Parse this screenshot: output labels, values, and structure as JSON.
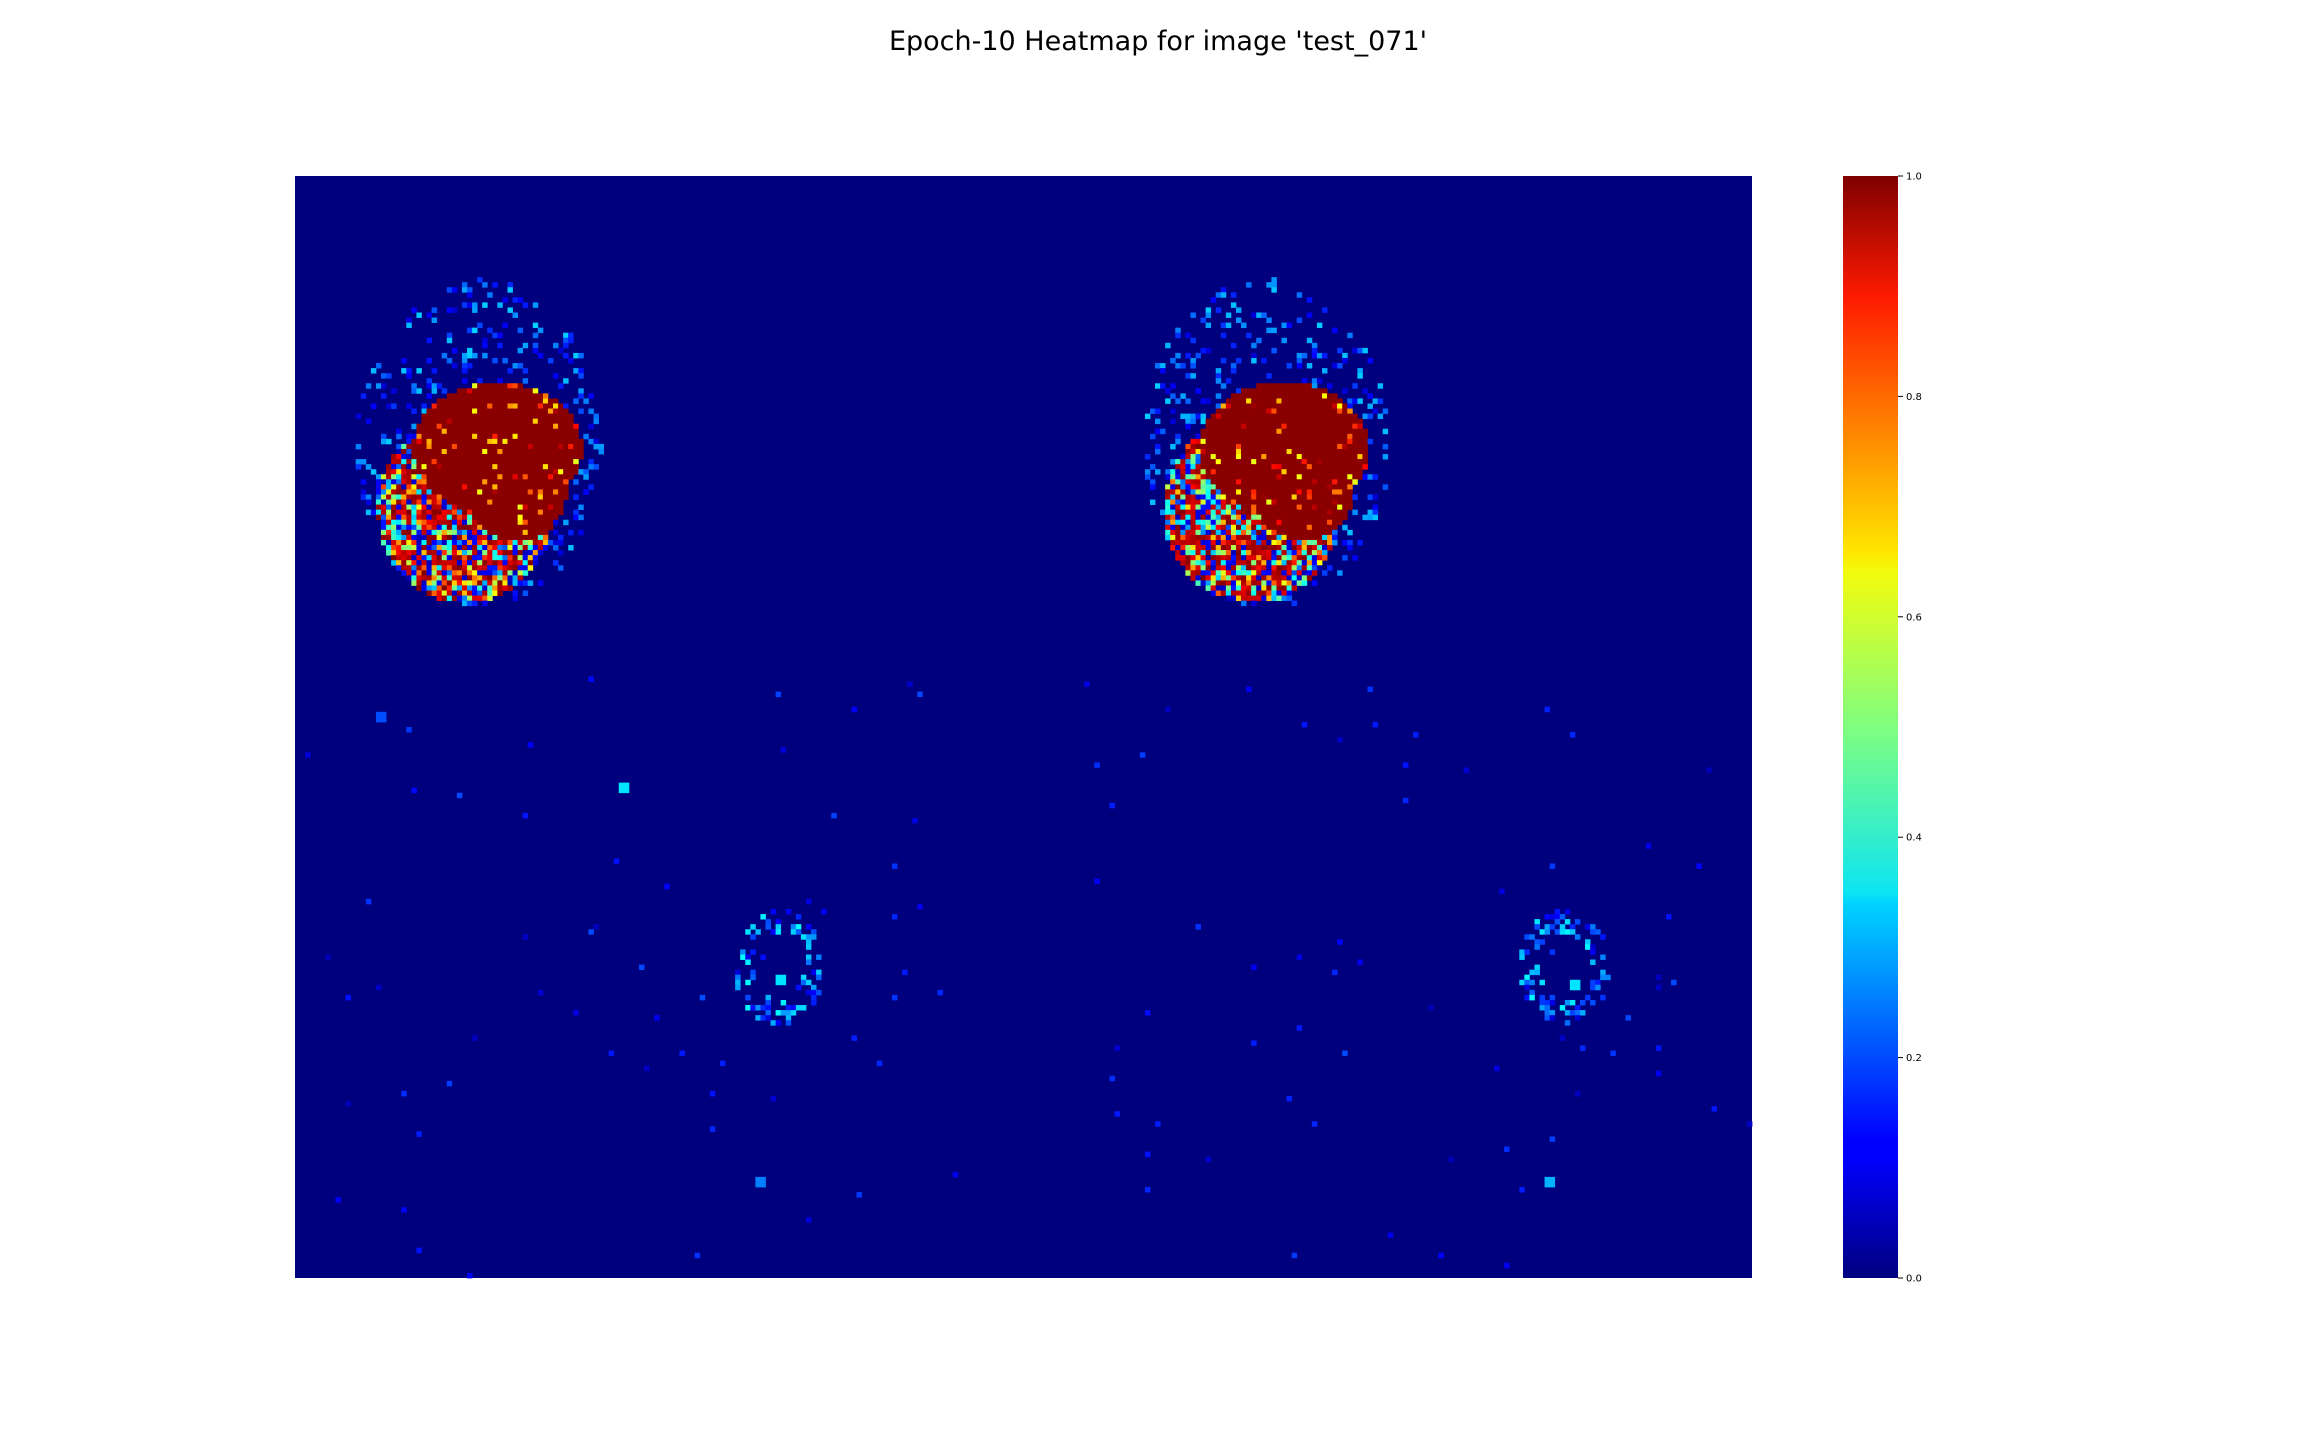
{
  "chart_data": {
    "type": "heatmap",
    "title": "Epoch-10 Heatmap for image 'test_071'",
    "colormap": "jet",
    "value_range": [
      0.0,
      1.0
    ],
    "axes_visible": false,
    "background_value": 0.0,
    "grid_shape": {
      "cols": 288,
      "rows": 218
    },
    "panels": [
      "left",
      "right"
    ],
    "colorbar": {
      "placement": "right",
      "ticks": [
        {
          "value": 0.0,
          "label": "0.0"
        },
        {
          "value": 0.2,
          "label": "0.2"
        },
        {
          "value": 0.4,
          "label": "0.4"
        },
        {
          "value": 0.6,
          "label": "0.6"
        },
        {
          "value": 0.8,
          "label": "0.8"
        },
        {
          "value": 1.0,
          "label": "1.0"
        }
      ]
    },
    "regions": [
      {
        "name": "left-upper-core",
        "value": 0.99,
        "description": "solid high-activation blob"
      },
      {
        "name": "left-upper-mixed",
        "value_range": [
          0.15,
          1.0
        ],
        "description": "speckled mixed activations below the core"
      },
      {
        "name": "right-upper-core",
        "value": 0.99,
        "description": "solid high-activation blob"
      },
      {
        "name": "right-upper-mixed",
        "value_range": [
          0.15,
          1.0
        ],
        "description": "speckled mixed activations below the core"
      },
      {
        "name": "left-lower-ring",
        "value_range": [
          0.05,
          0.4
        ],
        "description": "faint low-activation ring"
      },
      {
        "name": "right-lower-ring",
        "value_range": [
          0.05,
          0.4
        ],
        "description": "faint low-activation ring"
      },
      {
        "name": "isolated-spots",
        "value_range": [
          0.2,
          0.4
        ],
        "description": "small bright specks"
      }
    ]
  }
}
